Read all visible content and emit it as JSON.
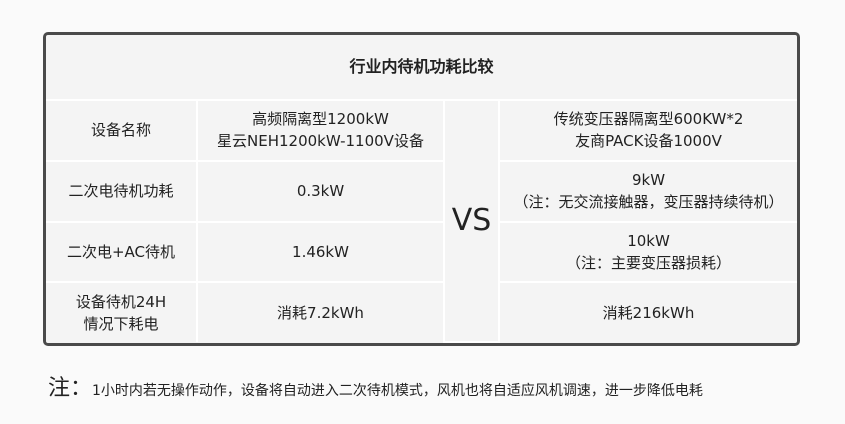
{
  "title": "行业内待机功耗比较",
  "vs": "VS",
  "rows": [
    {
      "label": "设备名称",
      "left": [
        "高频隔离型1200kW",
        "星云NEH1200kW-1100V设备"
      ],
      "right": [
        "传统变压器隔离型600KW*2",
        "友商PACK设备1000V"
      ]
    },
    {
      "label": "二次电待机功耗",
      "left": [
        "0.3kW"
      ],
      "right": [
        "9kW",
        "（注：无交流接触器，变压器持续待机）"
      ]
    },
    {
      "label": "二次电+AC待机",
      "left": [
        "1.46kW"
      ],
      "right": [
        "10kW",
        "（注：主要变压器损耗）"
      ]
    },
    {
      "label": "设备待机24H\n情况下耗电",
      "label_lines": [
        "设备待机24H",
        "情况下耗电"
      ],
      "left": [
        "消耗7.2kWh"
      ],
      "right": [
        "消耗216kWh"
      ]
    }
  ],
  "note": {
    "label": "注：",
    "text": "1小时内若无操作动作，设备将自动进入二次待机模式，风机也将自自适应风机调速，进一步降低电耗"
  }
}
